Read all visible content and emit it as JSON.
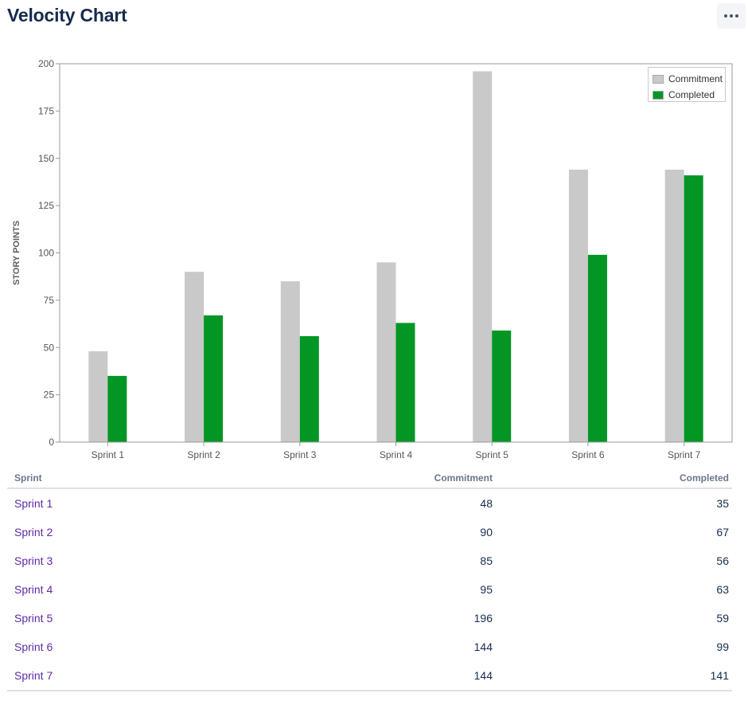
{
  "header": {
    "title": "Velocity Chart",
    "more_icon": "more-horizontal-icon"
  },
  "colors": {
    "commitment": "#c9c9c9",
    "completed": "#039624",
    "axis": "#999999",
    "title": "#172b4d",
    "link": "#5e2aa8"
  },
  "chart_data": {
    "type": "bar",
    "title": "",
    "xlabel": "",
    "ylabel": "STORY POINTS",
    "ylim": [
      0,
      200
    ],
    "yticks": [
      0,
      25,
      50,
      75,
      100,
      125,
      150,
      175,
      200
    ],
    "categories": [
      "Sprint 1",
      "Sprint 2",
      "Sprint 3",
      "Sprint 4",
      "Sprint 5",
      "Sprint 6",
      "Sprint 7"
    ],
    "series": [
      {
        "name": "Commitment",
        "values": [
          48,
          90,
          85,
          95,
          196,
          144,
          144
        ]
      },
      {
        "name": "Completed",
        "values": [
          35,
          67,
          56,
          63,
          59,
          99,
          141
        ]
      }
    ],
    "legend": "top-right",
    "grid": false
  },
  "table": {
    "headers": {
      "sprint": "Sprint",
      "commitment": "Commitment",
      "completed": "Completed"
    },
    "rows": [
      {
        "sprint": "Sprint 1",
        "commitment": "48",
        "completed": "35"
      },
      {
        "sprint": "Sprint 2",
        "commitment": "90",
        "completed": "67"
      },
      {
        "sprint": "Sprint 3",
        "commitment": "85",
        "completed": "56"
      },
      {
        "sprint": "Sprint 4",
        "commitment": "95",
        "completed": "63"
      },
      {
        "sprint": "Sprint 5",
        "commitment": "196",
        "completed": "59"
      },
      {
        "sprint": "Sprint 6",
        "commitment": "144",
        "completed": "99"
      },
      {
        "sprint": "Sprint 7",
        "commitment": "144",
        "completed": "141"
      }
    ]
  }
}
